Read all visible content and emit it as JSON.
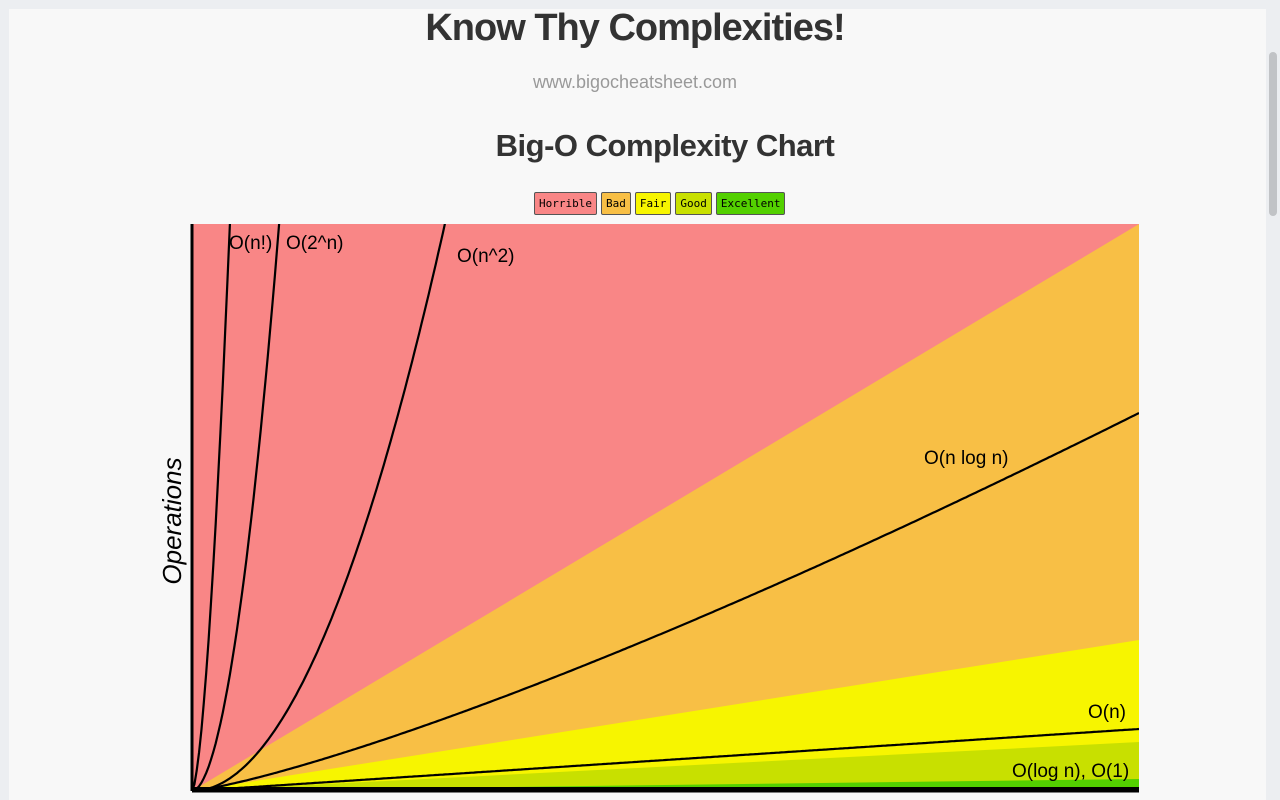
{
  "page": {
    "title": "Know Thy Complexities!",
    "site": "www.bigocheatsheet.com"
  },
  "chart_data": {
    "type": "area",
    "title": "Big-O Complexity Chart",
    "xlabel": "",
    "ylabel": "Operations",
    "legend_placement": "top-center",
    "legend": [
      {
        "label": "Horrible",
        "color": "#f98686"
      },
      {
        "label": "Bad",
        "color": "#f8bf45"
      },
      {
        "label": "Fair",
        "color": "#f7f500"
      },
      {
        "label": "Good",
        "color": "#c8e000"
      },
      {
        "label": "Excellent",
        "color": "#53d000"
      }
    ],
    "curves": [
      {
        "label": "O(n!)",
        "fn": "factorial"
      },
      {
        "label": "O(2^n)",
        "fn": "exp2"
      },
      {
        "label": "O(n^2)",
        "fn": "square"
      },
      {
        "label": "O(n log n)",
        "fn": "nlogn"
      },
      {
        "label": "O(n)",
        "fn": "linear"
      },
      {
        "label": "O(log n), O(1)",
        "fn": "log"
      }
    ]
  }
}
